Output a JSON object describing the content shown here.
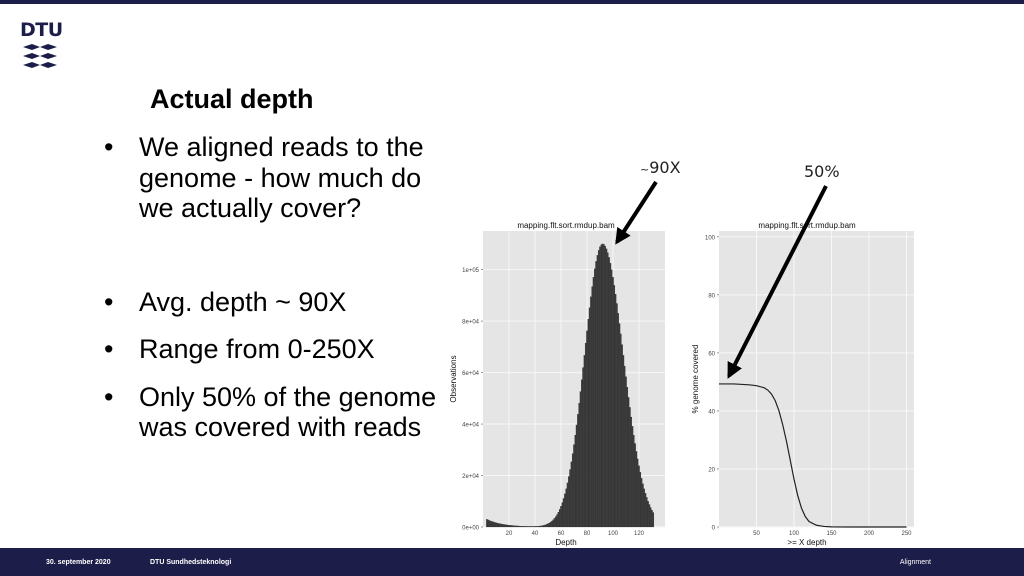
{
  "logo": {
    "text": "DTU"
  },
  "slide": {
    "title": "Actual depth",
    "bullets": [
      "We aligned reads to the genome - how much do we actually cover?",
      "Avg. depth ~ 90X",
      "Range from 0-250X",
      "Only 50% of the genome was covered with reads"
    ]
  },
  "annotations": {
    "depth_tilde": "~",
    "depth_value": "90X",
    "coverage_value": "50%"
  },
  "footer": {
    "date": "30. september 2020",
    "department": "DTU Sundhedsteknologi",
    "topic": "Alignment"
  },
  "colors": {
    "brand": "#1d1d4a",
    "panel": "#e5e5e5",
    "grid": "#f7f7f7",
    "bar": "#3a3a3a"
  },
  "chart_data": [
    {
      "type": "bar",
      "title": "mapping.flt.sort.rmdup.bam",
      "xlabel": "Depth",
      "ylabel": "Observations",
      "xlim": [
        0,
        140
      ],
      "ylim": [
        0,
        115000
      ],
      "x_ticks": [
        "20",
        "40",
        "60",
        "80",
        "100",
        "120"
      ],
      "y_ticks": [
        "0e+00",
        "2e+04",
        "4e+04",
        "6e+04",
        "8e+04",
        "1e+05"
      ],
      "peak_x": 92,
      "peak_y": 110000,
      "x_min": 3,
      "x_max": 131
    },
    {
      "type": "line",
      "title": "mapping.flt.sort.rmdup.bam",
      "xlabel": ">= X depth",
      "ylabel": "% genome covered",
      "xlim": [
        0,
        260
      ],
      "ylim": [
        0,
        102
      ],
      "x_ticks": [
        "50",
        "100",
        "150",
        "200",
        "250"
      ],
      "y_ticks": [
        "0",
        "20",
        "40",
        "60",
        "80",
        "100"
      ],
      "x": [
        0,
        20,
        40,
        50,
        60,
        65,
        70,
        75,
        80,
        85,
        90,
        95,
        100,
        105,
        110,
        115,
        120,
        130,
        140,
        150,
        175,
        200,
        250
      ],
      "y": [
        49.3,
        49.3,
        49.0,
        48.7,
        48.0,
        47.2,
        45.8,
        43.5,
        40.0,
        35.2,
        29.5,
        23.0,
        16.5,
        10.8,
        6.5,
        3.6,
        1.9,
        0.6,
        0.2,
        0.05,
        0,
        0,
        0
      ]
    }
  ]
}
